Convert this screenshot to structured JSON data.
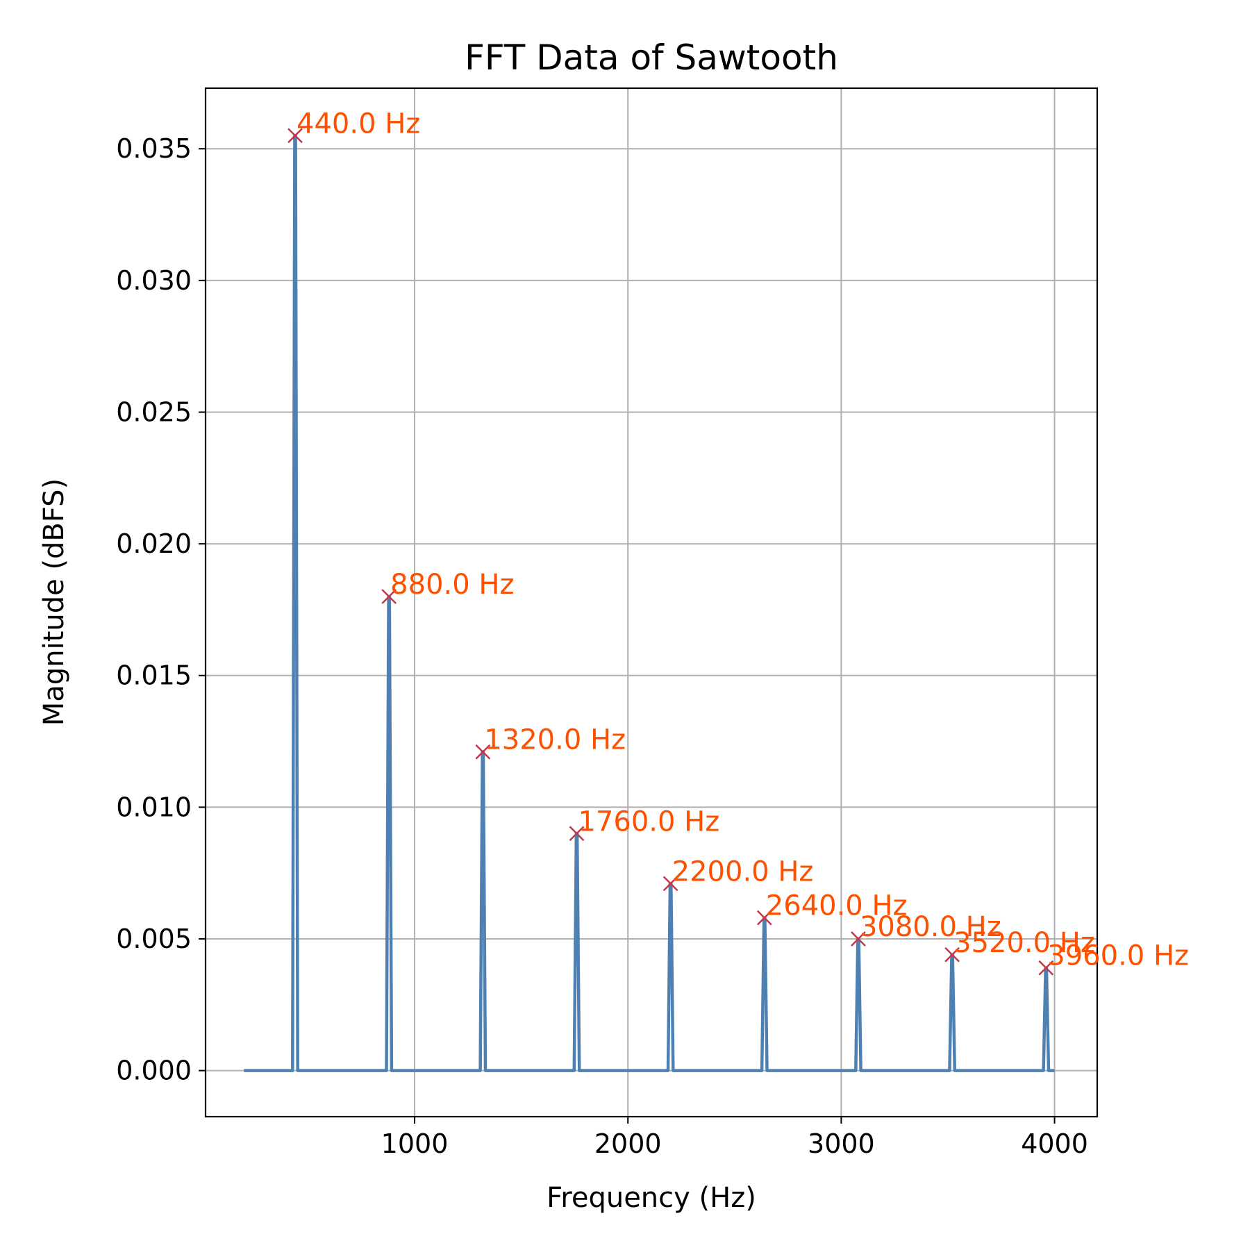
{
  "chart_data": {
    "type": "line",
    "title": "FFT Data of Sawtooth",
    "xlabel": "Frequency (Hz)",
    "ylabel": "Magnitude (dBFS)",
    "xlim": [
      20,
      4200
    ],
    "ylim": [
      -0.00175,
      0.0373
    ],
    "xticks": [
      1000,
      2000,
      3000,
      4000
    ],
    "xtick_labels": [
      "1000",
      "2000",
      "3000",
      "4000"
    ],
    "yticks": [
      0.0,
      0.005,
      0.01,
      0.015,
      0.02,
      0.025,
      0.03,
      0.035
    ],
    "ytick_labels": [
      "0.000",
      "0.005",
      "0.010",
      "0.015",
      "0.020",
      "0.025",
      "0.030",
      "0.035"
    ],
    "grid": true,
    "x_range": [
      200,
      4000
    ],
    "series": [
      {
        "color": "#4e81b1",
        "peaks": [
          {
            "x": 440,
            "y": 0.0355
          },
          {
            "x": 880,
            "y": 0.018
          },
          {
            "x": 1320,
            "y": 0.0121
          },
          {
            "x": 1760,
            "y": 0.009
          },
          {
            "x": 2200,
            "y": 0.0071
          },
          {
            "x": 2640,
            "y": 0.0058
          },
          {
            "x": 3080,
            "y": 0.005
          },
          {
            "x": 3520,
            "y": 0.0044
          },
          {
            "x": 3960,
            "y": 0.0039
          }
        ]
      }
    ],
    "annotations": [
      {
        "x": 440,
        "y": 0.0355,
        "text": "440.0 Hz"
      },
      {
        "x": 880,
        "y": 0.018,
        "text": "880.0 Hz"
      },
      {
        "x": 1320,
        "y": 0.0121,
        "text": "1320.0 Hz"
      },
      {
        "x": 1760,
        "y": 0.009,
        "text": "1760.0 Hz"
      },
      {
        "x": 2200,
        "y": 0.0071,
        "text": "2200.0 Hz"
      },
      {
        "x": 2640,
        "y": 0.0058,
        "text": "2640.0 Hz"
      },
      {
        "x": 3080,
        "y": 0.005,
        "text": "3080.0 Hz"
      },
      {
        "x": 3520,
        "y": 0.0044,
        "text": "3520.0 Hz"
      },
      {
        "x": 3960,
        "y": 0.0039,
        "text": "3960.0 Hz"
      }
    ],
    "marker_color": "#c0394b",
    "annotation_color": "#ff5000"
  }
}
